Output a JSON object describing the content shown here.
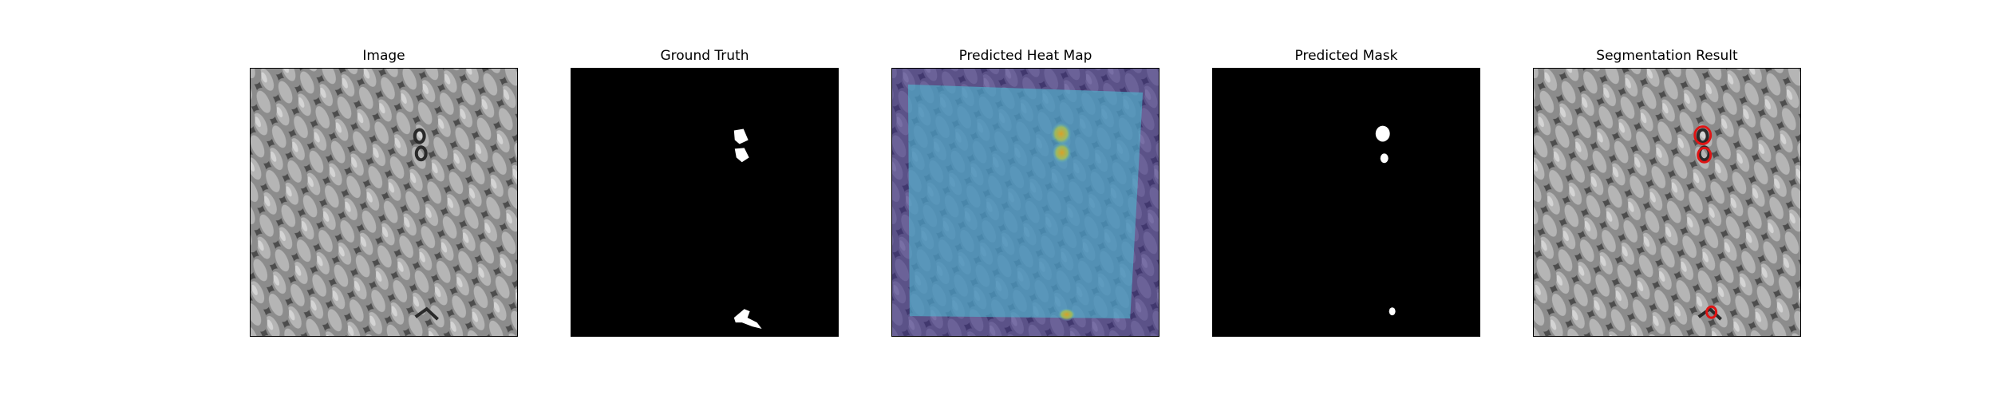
{
  "panels": [
    {
      "title": "Image"
    },
    {
      "title": "Ground Truth"
    },
    {
      "title": "Predicted Heat Map"
    },
    {
      "title": "Predicted Mask"
    },
    {
      "title": "Segmentation Result"
    }
  ],
  "colors": {
    "background": "#ffffff",
    "mask": "#ffffff",
    "contour": "#e01414",
    "heat_low": "#3a2c85",
    "heat_mid": "#4fb7cf",
    "heat_high": "#e0a020"
  }
}
